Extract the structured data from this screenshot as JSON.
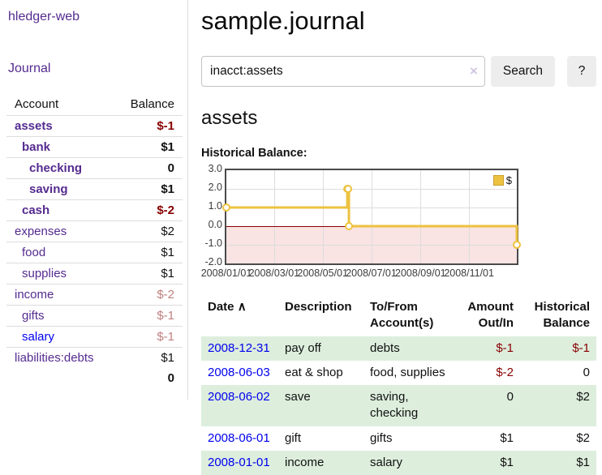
{
  "app": {
    "brand": "hledger-web",
    "nav_journal": "Journal"
  },
  "sidebar": {
    "headers": {
      "account": "Account",
      "balance": "Balance"
    },
    "accounts": [
      {
        "name": "assets",
        "balance": "$-1",
        "depth": 0,
        "bold": true,
        "neg": "strong"
      },
      {
        "name": "bank",
        "balance": "$1",
        "depth": 1,
        "bold": true,
        "neg": null
      },
      {
        "name": "checking",
        "balance": "0",
        "depth": 2,
        "bold": true,
        "neg": null
      },
      {
        "name": "saving",
        "balance": "$1",
        "depth": 2,
        "bold": true,
        "neg": null
      },
      {
        "name": "cash",
        "balance": "$-2",
        "depth": 1,
        "bold": true,
        "neg": "strong"
      },
      {
        "name": "expenses",
        "balance": "$2",
        "depth": 0,
        "bold": false,
        "neg": null
      },
      {
        "name": "food",
        "balance": "$1",
        "depth": 1,
        "bold": false,
        "neg": null
      },
      {
        "name": "supplies",
        "balance": "$1",
        "depth": 1,
        "bold": false,
        "neg": null
      },
      {
        "name": "income",
        "balance": "$-2",
        "depth": 0,
        "bold": false,
        "neg": "soft"
      },
      {
        "name": "gifts",
        "balance": "$-1",
        "depth": 1,
        "bold": false,
        "neg": "soft"
      },
      {
        "name": "salary",
        "balance": "$-1",
        "depth": 1,
        "bold": false,
        "neg": "soft",
        "blue": true
      },
      {
        "name": "liabilities:debts",
        "balance": "$1",
        "depth": 0,
        "bold": false,
        "neg": null
      }
    ],
    "total": "0"
  },
  "main": {
    "title": "sample.journal",
    "search": {
      "value": "inacct:assets",
      "clear_icon": "×",
      "button": "Search",
      "help_button": "?"
    },
    "account_heading": "assets",
    "chart_heading": "Historical Balance:"
  },
  "chart_data": {
    "type": "line",
    "step": true,
    "title": "Historical Balance",
    "x_range": [
      "2008-01-01",
      "2008-12-31"
    ],
    "ylim": [
      -2,
      3
    ],
    "yticks": [
      3,
      2,
      1,
      0,
      -1,
      -2
    ],
    "ytick_labels": [
      "3.0",
      "2.0",
      "1.0",
      "0.0",
      "-1.0",
      "-2.0"
    ],
    "xtick_labels": [
      "2008/01/01",
      "2008/03/01",
      "2008/05/01",
      "2008/07/01",
      "2008/09/01",
      "2008/11/01"
    ],
    "grid": true,
    "legend_position": "top-right",
    "series": [
      {
        "name": "$",
        "color": "#EDC240",
        "points": [
          [
            "2008-01-01",
            1
          ],
          [
            "2008-06-01",
            2
          ],
          [
            "2008-06-02",
            2
          ],
          [
            "2008-06-03",
            0
          ],
          [
            "2008-12-31",
            -1
          ]
        ]
      }
    ],
    "negative_region_color": "#FAE3E3",
    "zero_line_color": "#8B0000"
  },
  "register": {
    "headers": [
      "Date",
      "Description",
      "To/From Account(s)",
      "Amount Out/In",
      "Historical Balance"
    ],
    "sort_arrow": "∧",
    "rows": [
      {
        "date": "2008-12-31",
        "description": "pay off",
        "tofrom": "debts",
        "amount": "$-1",
        "amount_neg": true,
        "balance": "$-1",
        "balance_neg": true
      },
      {
        "date": "2008-06-03",
        "description": "eat & shop",
        "tofrom": "food, supplies",
        "amount": "$-2",
        "amount_neg": true,
        "balance": "0",
        "balance_neg": false
      },
      {
        "date": "2008-06-02",
        "description": "save",
        "tofrom": "saving, checking",
        "amount": "0",
        "amount_neg": false,
        "balance": "$2",
        "balance_neg": false
      },
      {
        "date": "2008-06-01",
        "description": "gift",
        "tofrom": "gifts",
        "amount": "$1",
        "amount_neg": false,
        "balance": "$2",
        "balance_neg": false
      },
      {
        "date": "2008-01-01",
        "description": "income",
        "tofrom": "salary",
        "amount": "$1",
        "amount_neg": false,
        "balance": "$1",
        "balance_neg": false
      }
    ]
  },
  "colors": {
    "link_purple": "#552B90",
    "link_blue": "#0000EE",
    "negative_strong": "#880000",
    "negative_soft": "#C08080",
    "row_green": "#DDEEDD",
    "chart_line": "#EDC240",
    "chart_negative_fill": "#FAE3E3",
    "zero_line": "#8B0000"
  }
}
